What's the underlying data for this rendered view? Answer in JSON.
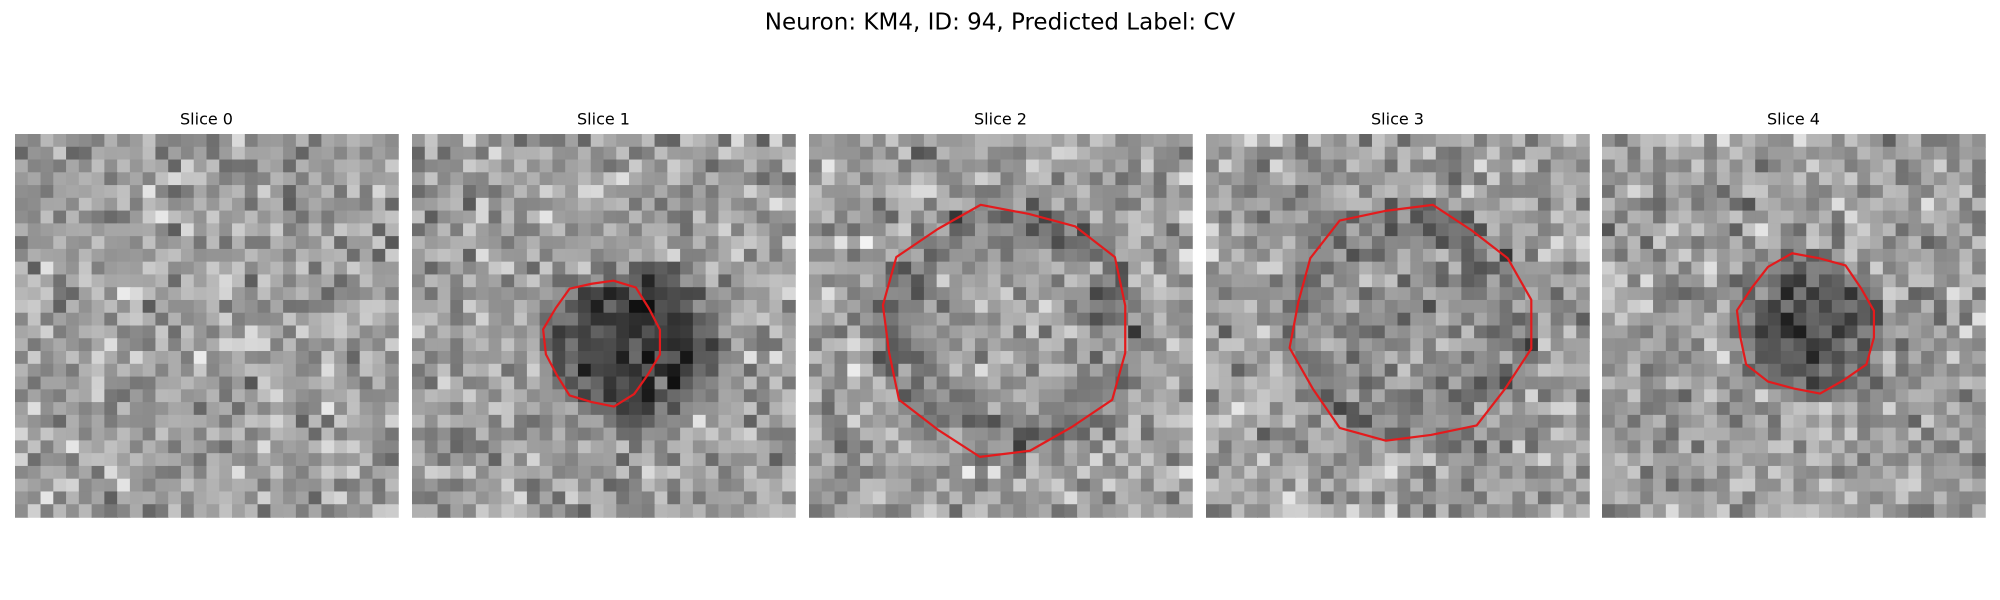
{
  "figure": {
    "title": "Neuron: KM4, ID: 94, Predicted Label: CV",
    "panels": [
      {
        "title": "Slice 0"
      },
      {
        "title": "Slice 1"
      },
      {
        "title": "Slice 2"
      },
      {
        "title": "Slice 3"
      },
      {
        "title": "Slice 4"
      }
    ]
  }
}
